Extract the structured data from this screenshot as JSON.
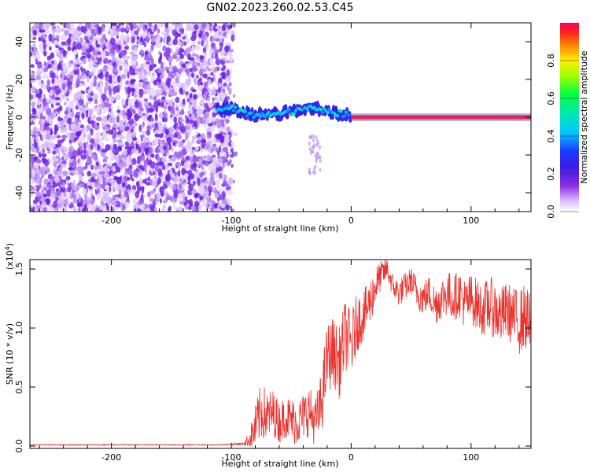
{
  "title": "GN02.2023.260.02.53.C45",
  "chart_data": [
    {
      "type": "heatmap",
      "xlabel": "Height of straight line (km)",
      "ylabel": "Frequency (Hz)",
      "xlim": [
        -268,
        150
      ],
      "ylim": [
        -50,
        50
      ],
      "xticks": [
        -200,
        -100,
        0,
        100
      ],
      "xtick_labels": [
        "-200",
        "-100",
        "0",
        "100"
      ],
      "yticks": [
        -40,
        -20,
        0,
        20,
        40
      ],
      "ytick_labels": [
        "-40",
        "-20",
        "0",
        "20",
        "40"
      ],
      "colorbar": {
        "label": "Normalized spectral amplitude",
        "range": [
          0,
          1
        ],
        "ticks": [
          0.0,
          0.2,
          0.4,
          0.6,
          0.8
        ],
        "tick_labels": [
          "0.0",
          "0.2",
          "0.4",
          "0.6",
          "0.8"
        ]
      },
      "noise_region_x": [
        -268,
        -100
      ],
      "signal_track": [
        {
          "x": -112,
          "y": 4
        },
        {
          "x": -100,
          "y": 5
        },
        {
          "x": -90,
          "y": 2
        },
        {
          "x": -80,
          "y": 1
        },
        {
          "x": -70,
          "y": 1
        },
        {
          "x": -60,
          "y": 2
        },
        {
          "x": -50,
          "y": 3
        },
        {
          "x": -40,
          "y": 4
        },
        {
          "x": -30,
          "y": 5
        },
        {
          "x": -20,
          "y": 3
        },
        {
          "x": -10,
          "y": 2
        },
        {
          "x": 0,
          "y": 1
        },
        {
          "x": 10,
          "y": 0
        },
        {
          "x": 150,
          "y": 0
        }
      ]
    },
    {
      "type": "line",
      "xlabel": "Height of straight line (km)",
      "ylabel": "SNR (10 * v/v)",
      "y_multiplier": "(x10",
      "y_multiplier_exp": "4",
      "y_multiplier_close": ")",
      "xlim": [
        -268,
        150
      ],
      "ylim": [
        -0.02,
        1.58
      ],
      "xticks": [
        -200,
        -100,
        0,
        100
      ],
      "xtick_labels": [
        "-200",
        "-100",
        "0",
        "100"
      ],
      "yticks": [
        0.0,
        0.5,
        1.0,
        1.5
      ],
      "ytick_labels": [
        "0.0",
        "0.5",
        "1.0",
        "1.5"
      ],
      "color": "#e8332e",
      "series": [
        {
          "x": [
            -268,
            -250,
            -200,
            -150,
            -110,
            -90,
            -85,
            -80,
            -75,
            -70,
            -65,
            -60,
            -55,
            -50,
            -45,
            -40,
            -35,
            -30,
            -25,
            -20,
            -15,
            -10,
            -5,
            0,
            5,
            10,
            15,
            20,
            25,
            30,
            35,
            40,
            45,
            50,
            55,
            60,
            65,
            70,
            75,
            80,
            85,
            90,
            95,
            100,
            105,
            110,
            115,
            120,
            125,
            130,
            135,
            140,
            145,
            150
          ],
          "values": [
            0.01,
            0.01,
            0.01,
            0.01,
            0.01,
            0.02,
            0.05,
            0.15,
            0.3,
            0.25,
            0.28,
            0.2,
            0.25,
            0.22,
            0.2,
            0.25,
            0.3,
            0.2,
            0.35,
            0.75,
            0.8,
            0.7,
            0.95,
            0.85,
            1.05,
            1.1,
            1.2,
            1.35,
            1.45,
            1.5,
            1.35,
            1.3,
            1.35,
            1.4,
            1.3,
            1.25,
            1.3,
            1.2,
            1.25,
            1.3,
            1.25,
            1.3,
            1.2,
            1.25,
            1.2,
            1.15,
            1.2,
            1.15,
            1.1,
            1.15,
            1.1,
            1.05,
            1.1,
            1.0
          ],
          "noise_amplitude": [
            0.004,
            0.004,
            0.004,
            0.004,
            0.004,
            0.01,
            0.08,
            0.2,
            0.25,
            0.22,
            0.2,
            0.18,
            0.18,
            0.2,
            0.2,
            0.2,
            0.22,
            0.2,
            0.28,
            0.3,
            0.3,
            0.3,
            0.3,
            0.3,
            0.25,
            0.22,
            0.2,
            0.18,
            0.12,
            0.1,
            0.1,
            0.12,
            0.12,
            0.12,
            0.14,
            0.15,
            0.15,
            0.18,
            0.18,
            0.2,
            0.2,
            0.2,
            0.22,
            0.22,
            0.22,
            0.22,
            0.25,
            0.25,
            0.25,
            0.25,
            0.25,
            0.28,
            0.28,
            0.28
          ]
        }
      ]
    }
  ]
}
